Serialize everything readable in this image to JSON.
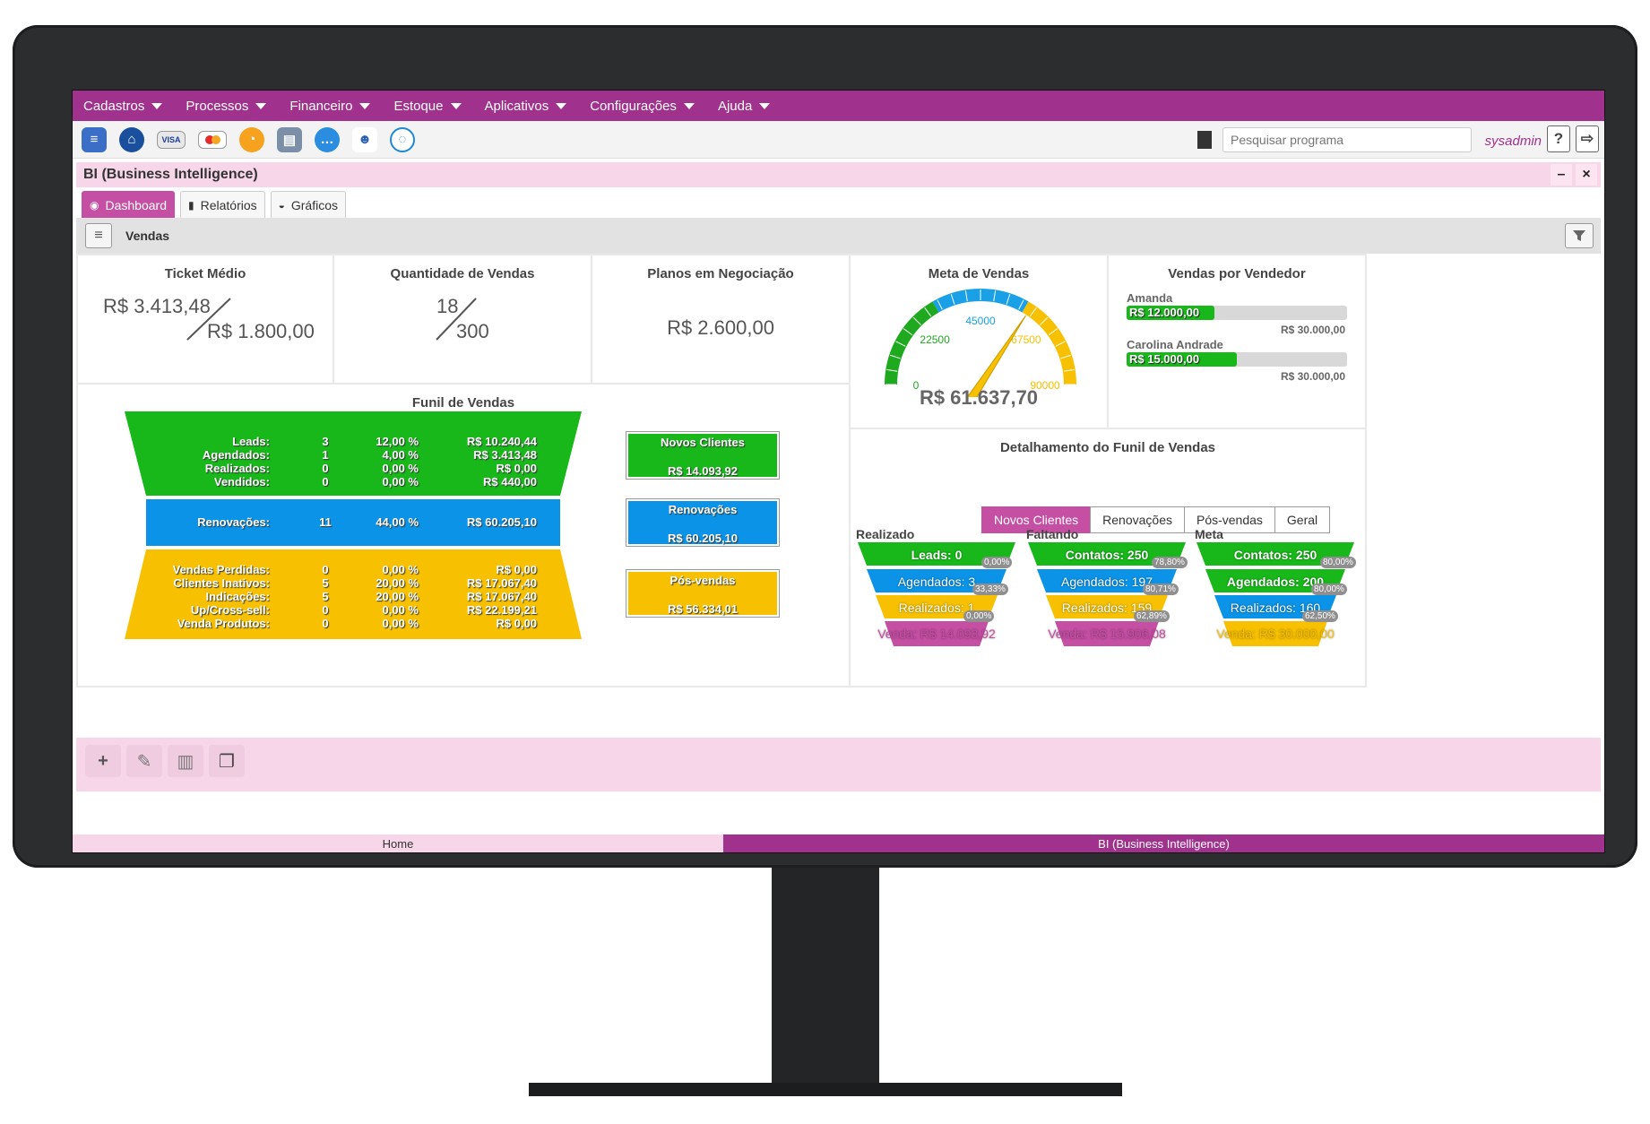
{
  "menu": [
    "Cadastros",
    "Processos",
    "Financeiro",
    "Estoque",
    "Aplicativos",
    "Configurações",
    "Ajuda"
  ],
  "toolbar": {
    "icons": [
      "document-icon",
      "home-icon",
      "visa-card-icon",
      "mastercard-icon",
      "speedometer-icon",
      "printer-icon",
      "chat-bubble-icon",
      "users-icon",
      "support-chat-icon"
    ],
    "search_placeholder": "Pesquisar programa",
    "user": "sysadmin",
    "help": "?"
  },
  "window": {
    "title": "BI (Business Intelligence)",
    "minimize": "–",
    "close": "×"
  },
  "tabs": [
    "Dashboard",
    "Relatórios",
    "Gráficos"
  ],
  "section": {
    "title": "Vendas"
  },
  "ticket_medio": {
    "title": "Ticket Médio",
    "top": "R$ 3.413,48",
    "bottom": "R$ 1.800,00"
  },
  "quantidade": {
    "title": "Quantidade de Vendas",
    "top": "18",
    "bottom": "300"
  },
  "planos": {
    "title": "Planos em Negociação",
    "value": "R$ 2.600,00"
  },
  "meta": {
    "title": "Meta de Vendas",
    "value": "R$ 61.637,70",
    "ticks": [
      "0",
      "22500",
      "45000",
      "67500",
      "90000"
    ],
    "needle_value": 61637.7,
    "max": 90000
  },
  "vendedor": {
    "title": "Vendas por Vendedor",
    "items": [
      {
        "name": "Amanda",
        "value": "R$ 12.000,00",
        "target": "R$ 30.000,00",
        "fraction": 0.4
      },
      {
        "name": "Carolina Andrade",
        "value": "R$ 15.000,00",
        "target": "R$ 30.000,00",
        "fraction": 0.5
      }
    ]
  },
  "funil": {
    "title": "Funil de Vendas",
    "top_rows": [
      {
        "label": "Leads:",
        "count": "3",
        "pct": "12,00 %",
        "value": "R$ 10.240,44"
      },
      {
        "label": "Agendados:",
        "count": "1",
        "pct": "4,00 %",
        "value": "R$ 3.413,48"
      },
      {
        "label": "Realizados:",
        "count": "0",
        "pct": "0,00 %",
        "value": "R$ 0,00"
      },
      {
        "label": "Vendidos:",
        "count": "0",
        "pct": "0,00 %",
        "value": "R$ 440,00"
      }
    ],
    "mid_row": {
      "label": "Renovações:",
      "count": "11",
      "pct": "44,00 %",
      "value": "R$ 60.205,10"
    },
    "bottom_rows": [
      {
        "label": "Vendas Perdidas:",
        "count": "0",
        "pct": "0,00 %",
        "value": "R$ 0,00"
      },
      {
        "label": "Clientes Inativos:",
        "count": "5",
        "pct": "20,00 %",
        "value": "R$ 17.067,40"
      },
      {
        "label": "Indicações:",
        "count": "5",
        "pct": "20,00 %",
        "value": "R$ 17.067,40"
      },
      {
        "label": "Up/Cross-sell:",
        "count": "0",
        "pct": "0,00 %",
        "value": "R$ 22.199,21"
      },
      {
        "label": "Venda Produtos:",
        "count": "0",
        "pct": "0,00 %",
        "value": "R$ 0,00"
      }
    ],
    "summary": [
      {
        "title": "Novos Clientes",
        "value": "R$ 14.093,92",
        "color": "#18b81a"
      },
      {
        "title": "Renovações",
        "value": "R$ 60.205,10",
        "color": "#0b93e8"
      },
      {
        "title": "Pós-vendas",
        "value": "R$ 56.334,01",
        "color": "#f7c000"
      }
    ],
    "colors": {
      "green": "#18b81a",
      "blue": "#0b93e8",
      "yellow": "#f7c000",
      "pink": "#c44fa3"
    }
  },
  "detalhe": {
    "title": "Detalhamento do Funil de Vendas",
    "tabs": [
      "Novos Clientes",
      "Renovações",
      "Pós-vendas",
      "Geral"
    ],
    "funnels": [
      {
        "heading": "Realizado",
        "rows": [
          "Leads: 0",
          "Agendados: 3",
          "Realizados: 1",
          "Venda: R$ 14.093,92"
        ],
        "pcts": [
          "0,00%",
          "33,33%",
          "0,00%"
        ]
      },
      {
        "heading": "Faltando",
        "rows": [
          "Contatos: 250",
          "Agendados: 197",
          "Realizados: 159",
          "Venda: R$ 15.906,08"
        ],
        "pcts": [
          "78,80%",
          "80,71%",
          "62,89%"
        ]
      },
      {
        "heading": "Meta",
        "rows": [
          "Contatos: 250",
          "Agendados: 200",
          "Realizados: 160",
          "Venda: R$ 30.000,00"
        ],
        "pcts": [
          "80,00%",
          "80,00%",
          "62,50%"
        ]
      }
    ]
  },
  "actions": [
    "add-icon",
    "edit-icon",
    "trash-icon",
    "copy-icon"
  ],
  "taskbar": [
    "Home",
    "BI (Business Intelligence)"
  ]
}
